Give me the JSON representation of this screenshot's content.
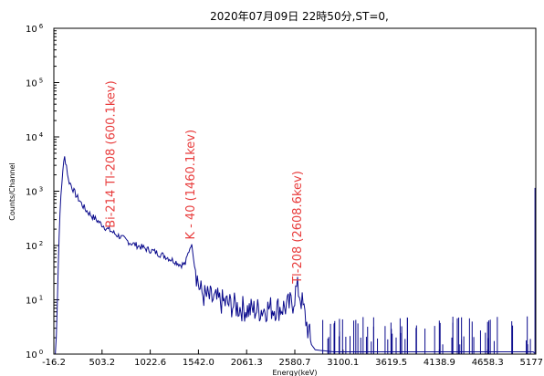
{
  "chart_data": {
    "type": "line",
    "title": "2020年07月09日  22時50分,ST=0,",
    "xlabel": "Energy(keV)",
    "ylabel": "Counts/Channel",
    "x_scale": "linear",
    "y_scale": "log",
    "xlim": [
      -16.2,
      5177.7
    ],
    "ylim": [
      1,
      1000000
    ],
    "grid": false,
    "x_ticks": [
      "-16.2",
      "503.2",
      "1022.6",
      "1542.0",
      "2061.3",
      "2580.7",
      "3100.1",
      "3619.5",
      "4138.9",
      "4658.3",
      "5177.7"
    ],
    "y_ticks": [
      {
        "base": "10",
        "exp": "0"
      },
      {
        "base": "10",
        "exp": "1"
      },
      {
        "base": "10",
        "exp": "2"
      },
      {
        "base": "10",
        "exp": "3"
      },
      {
        "base": "10",
        "exp": "4"
      },
      {
        "base": "10",
        "exp": "5"
      },
      {
        "base": "10",
        "exp": "6"
      }
    ],
    "annotations": [
      {
        "text": "Bi-214 Tl-208 (600.1kev)",
        "x": 600.1,
        "y": 180
      },
      {
        "text": "K - 40 (1460.1kev)",
        "x": 1460.1,
        "y": 110
      },
      {
        "text": "Tl-208 (2608.6kev)",
        "x": 2608.6,
        "y": 17
      }
    ],
    "series": [
      {
        "color": "#0a0a8c",
        "points": [
          [
            -16.2,
            1
          ],
          [
            0,
            1
          ],
          [
            20,
            8
          ],
          [
            40,
            150
          ],
          [
            60,
            800
          ],
          [
            80,
            2500
          ],
          [
            100,
            4200
          ],
          [
            120,
            3000
          ],
          [
            140,
            1600
          ],
          [
            170,
            1300
          ],
          [
            200,
            1000
          ],
          [
            230,
            800
          ],
          [
            260,
            680
          ],
          [
            290,
            560
          ],
          [
            320,
            470
          ],
          [
            360,
            400
          ],
          [
            400,
            340
          ],
          [
            440,
            300
          ],
          [
            480,
            260
          ],
          [
            520,
            230
          ],
          [
            560,
            200
          ],
          [
            600,
            185
          ],
          [
            640,
            165
          ],
          [
            700,
            145
          ],
          [
            760,
            125
          ],
          [
            820,
            110
          ],
          [
            880,
            100
          ],
          [
            940,
            92
          ],
          [
            1000,
            84
          ],
          [
            1060,
            78
          ],
          [
            1120,
            70
          ],
          [
            1180,
            64
          ],
          [
            1240,
            56
          ],
          [
            1300,
            50
          ],
          [
            1350,
            44
          ],
          [
            1400,
            46
          ],
          [
            1430,
            70
          ],
          [
            1460,
            105
          ],
          [
            1480,
            85
          ],
          [
            1500,
            45
          ],
          [
            1530,
            25
          ],
          [
            1560,
            15
          ],
          [
            1600,
            12
          ],
          [
            1650,
            11
          ],
          [
            1700,
            10
          ],
          [
            1800,
            9
          ],
          [
            1900,
            8
          ],
          [
            2000,
            7
          ],
          [
            2100,
            6.5
          ],
          [
            2200,
            6.5
          ],
          [
            2300,
            7
          ],
          [
            2400,
            7
          ],
          [
            2500,
            7.5
          ],
          [
            2560,
            9
          ],
          [
            2600,
            16
          ],
          [
            2620,
            15
          ],
          [
            2650,
            10
          ],
          [
            2680,
            6
          ],
          [
            2720,
            3
          ],
          [
            2760,
            1.5
          ],
          [
            2800,
            1.2
          ],
          [
            3000,
            1.1
          ],
          [
            3500,
            1.1
          ],
          [
            4000,
            1.1
          ],
          [
            4500,
            1.1
          ],
          [
            5000,
            1.1
          ],
          [
            5150,
            1.1
          ],
          [
            5177.7,
            1
          ]
        ],
        "spikes": [
          [
            5170,
            1150
          ],
          [
            5174,
            30
          ]
        ]
      }
    ]
  }
}
